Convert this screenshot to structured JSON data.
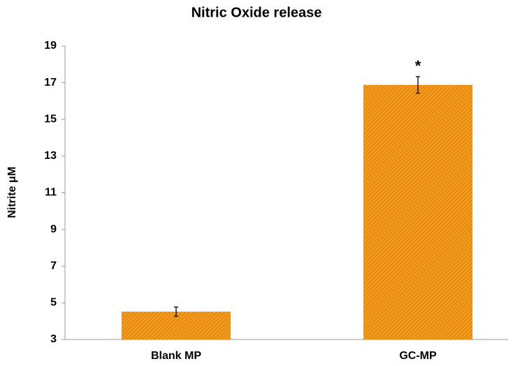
{
  "chart_data": {
    "type": "bar",
    "title": "Nitric Oxide release",
    "y_label": "Nitrite μM",
    "categories": [
      "Blank MP",
      "GC-MP"
    ],
    "values": [
      4.52,
      16.88
    ],
    "errors": [
      0.25,
      0.45
    ],
    "color": "#f39a1e",
    "annotations": [
      "*"
    ],
    "ylim": [
      3,
      19
    ],
    "yticks": [
      3,
      5,
      7,
      9,
      11,
      13,
      15,
      17,
      19
    ],
    "grid": false
  }
}
